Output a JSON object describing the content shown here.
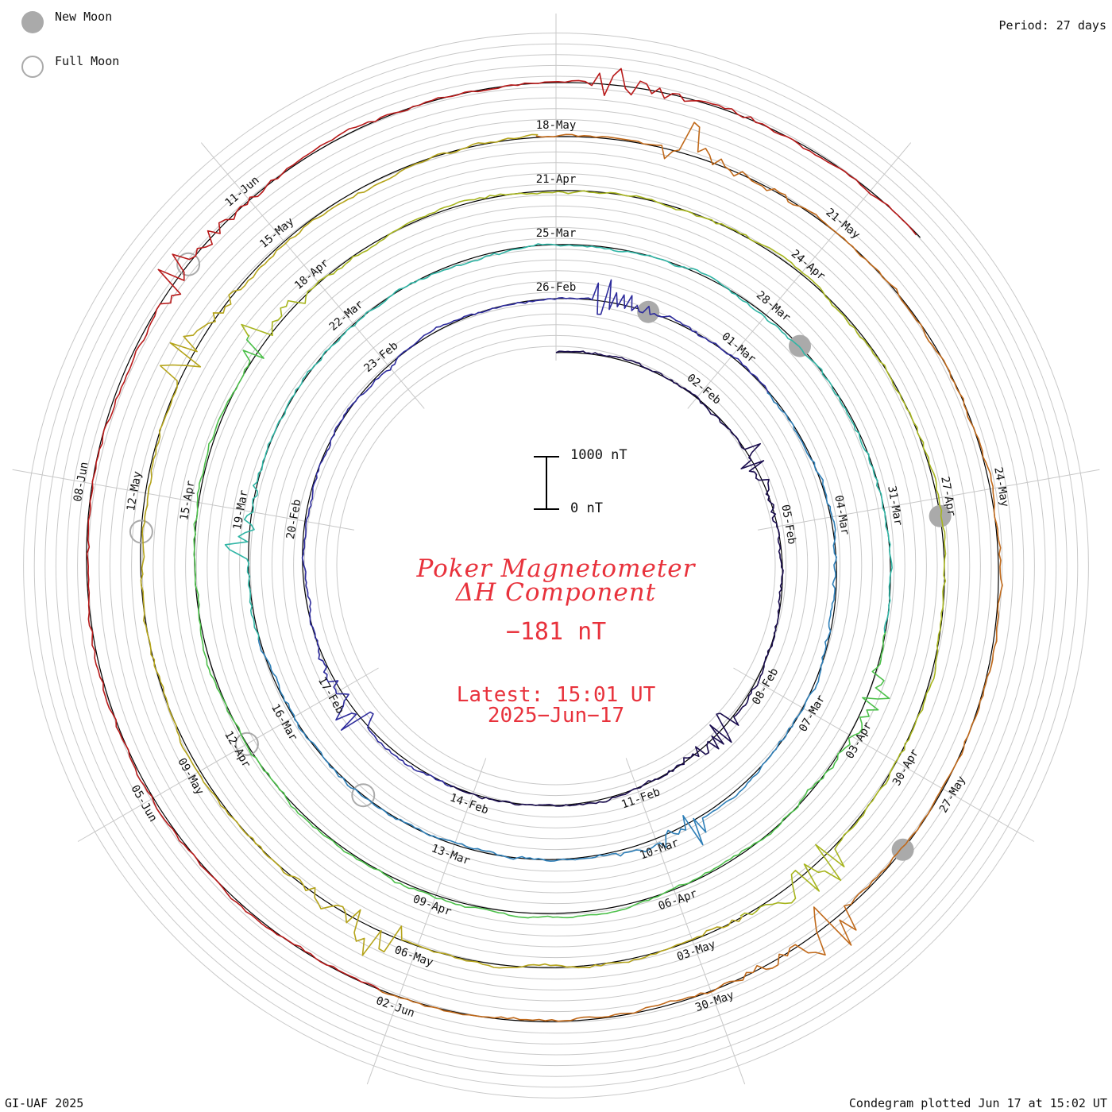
{
  "legend": {
    "new_moon_label": "New Moon",
    "full_moon_label": "Full Moon",
    "new_moon_color": "#aaaaaa",
    "full_moon_color": "#aaaaaa"
  },
  "period_text": "Period: 27 days",
  "footer": {
    "left": "GI-UAF 2025",
    "right": "Condegram plotted Jun 17 at 15:02 UT"
  },
  "title": {
    "line1": "Poker Magnetometer",
    "line2": "ΔH Component",
    "value": "−181 nT",
    "latest": "Latest: 15:01 UT",
    "date": "2025−Jun−17"
  },
  "scale_bar": {
    "top_label": "1000 nT",
    "bottom_label": "0 nT",
    "span_nT": 1000
  },
  "chart_data": {
    "type": "line",
    "subtype": "condegram (spiral time series)",
    "period_days": 27,
    "start_date": "2025-01-30",
    "end_date": "2025-06-17",
    "turns": 6,
    "direction": "clockwise from top",
    "quantity": "ΔH (nT)",
    "latest_value_nT": -181,
    "date_labels": [
      {
        "label": "02-Feb",
        "day": 3
      },
      {
        "label": "05-Feb",
        "day": 6
      },
      {
        "label": "08-Feb",
        "day": 9
      },
      {
        "label": "11-Feb",
        "day": 12
      },
      {
        "label": "14-Feb",
        "day": 15
      },
      {
        "label": "17-Feb",
        "day": 18
      },
      {
        "label": "20-Feb",
        "day": 21
      },
      {
        "label": "23-Feb",
        "day": 24
      },
      {
        "label": "26-Feb",
        "day": 27
      },
      {
        "label": "01-Mar",
        "day": 30
      },
      {
        "label": "04-Mar",
        "day": 33
      },
      {
        "label": "07-Mar",
        "day": 36
      },
      {
        "label": "10-Mar",
        "day": 39
      },
      {
        "label": "13-Mar",
        "day": 42
      },
      {
        "label": "16-Mar",
        "day": 45
      },
      {
        "label": "19-Mar",
        "day": 48
      },
      {
        "label": "22-Mar",
        "day": 51
      },
      {
        "label": "25-Mar",
        "day": 54
      },
      {
        "label": "28-Mar",
        "day": 57
      },
      {
        "label": "31-Mar",
        "day": 60
      },
      {
        "label": "03-Apr",
        "day": 63
      },
      {
        "label": "06-Apr",
        "day": 66
      },
      {
        "label": "09-Apr",
        "day": 69
      },
      {
        "label": "12-Apr",
        "day": 72
      },
      {
        "label": "15-Apr",
        "day": 75
      },
      {
        "label": "18-Apr",
        "day": 78
      },
      {
        "label": "21-Apr",
        "day": 81
      },
      {
        "label": "24-Apr",
        "day": 84
      },
      {
        "label": "27-Apr",
        "day": 87
      },
      {
        "label": "30-Apr",
        "day": 90
      },
      {
        "label": "03-May",
        "day": 93
      },
      {
        "label": "06-May",
        "day": 96
      },
      {
        "label": "09-May",
        "day": 99
      },
      {
        "label": "12-May",
        "day": 102
      },
      {
        "label": "15-May",
        "day": 105
      },
      {
        "label": "18-May",
        "day": 108
      },
      {
        "label": "21-May",
        "day": 111
      },
      {
        "label": "24-May",
        "day": 114
      },
      {
        "label": "27-May",
        "day": 117
      },
      {
        "label": "30-May",
        "day": 120
      },
      {
        "label": "02-Jun",
        "day": 123
      },
      {
        "label": "05-Jun",
        "day": 126
      },
      {
        "label": "08-Jun",
        "day": 129
      },
      {
        "label": "11-Jun",
        "day": 132
      }
    ],
    "new_moons": [
      28.5,
      57.6,
      87.2,
      117.7
    ],
    "full_moons": [
      43.5,
      72.0,
      101.6,
      131.2
    ],
    "series_colors": [
      "#1a0d4e",
      "#2d2b9c",
      "#2e7fb8",
      "#2fb5a5",
      "#4cc04a",
      "#a7b51e",
      "#b5a41a",
      "#c0691a",
      "#b81a1a"
    ],
    "disturbance_events": [
      {
        "day": 4.6,
        "amp_nT": 600
      },
      {
        "day": 10.0,
        "amp_nT": 700
      },
      {
        "day": 17.4,
        "amp_nT": 650
      },
      {
        "day": 27.8,
        "amp_nT": 550
      },
      {
        "day": 38.5,
        "amp_nT": 500
      },
      {
        "day": 47.5,
        "amp_nT": 450
      },
      {
        "day": 62.3,
        "amp_nT": 500
      },
      {
        "day": 77.0,
        "amp_nT": 650
      },
      {
        "day": 91.4,
        "amp_nT": 700
      },
      {
        "day": 96.4,
        "amp_nT": 800
      },
      {
        "day": 103.4,
        "amp_nT": 750
      },
      {
        "day": 109.3,
        "amp_nT": 600
      },
      {
        "day": 118.6,
        "amp_nT": 900
      },
      {
        "day": 131.0,
        "amp_nT": 550
      },
      {
        "day": 135.5,
        "amp_nT": 500
      }
    ]
  }
}
